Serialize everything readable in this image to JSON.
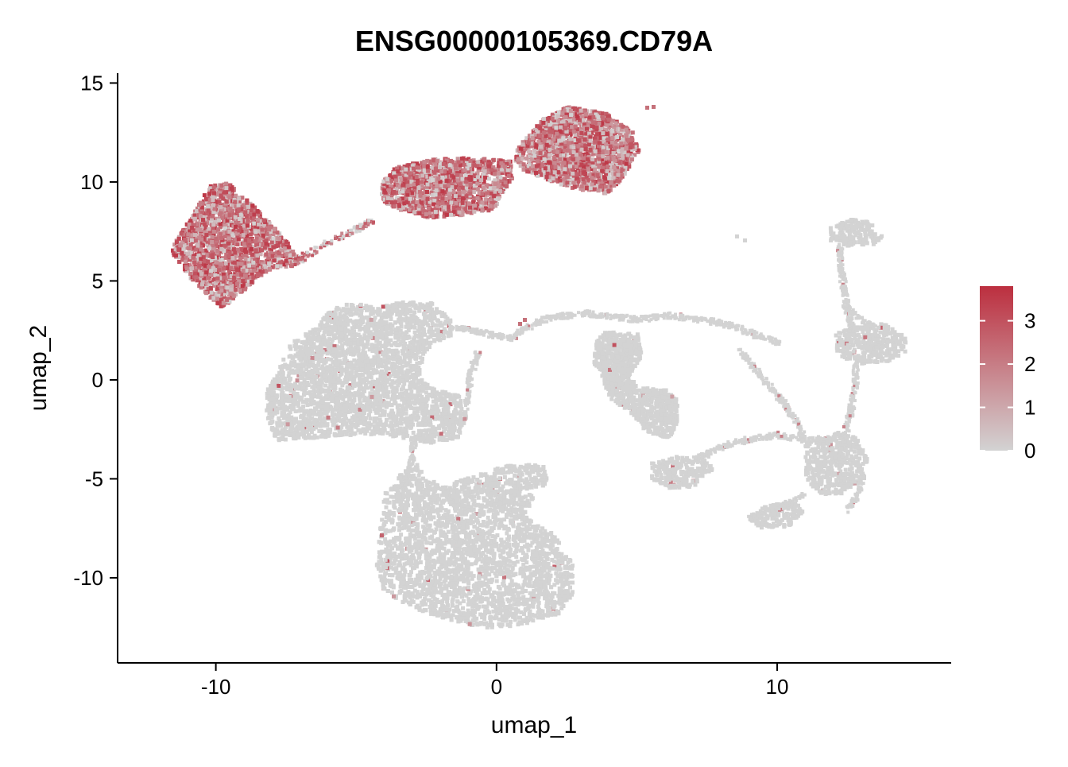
{
  "chart_data": {
    "type": "scatter",
    "title": "ENSG00000105369.CD79A",
    "xlabel": "umap_1",
    "ylabel": "umap_2",
    "xlim": [
      -13.5,
      16.2
    ],
    "ylim": [
      -14.3,
      15.5
    ],
    "x_ticks": [
      -10,
      0,
      10
    ],
    "x_tick_labels": [
      "-10",
      "0",
      "10"
    ],
    "y_ticks": [
      -10,
      -5,
      0,
      5,
      10,
      15
    ],
    "y_tick_labels": [
      "-10",
      "-5",
      "0",
      "5",
      "10",
      "15"
    ],
    "grid": false,
    "legend_position": "right",
    "color_scale": {
      "low": "#d3d3d3",
      "high": "#bc2f3f",
      "min": 0,
      "max": 3.8,
      "ticks": [
        0,
        1,
        2,
        3
      ],
      "tick_labels": [
        "0",
        "1",
        "2",
        "3"
      ]
    },
    "clusters": [
      {
        "region": "B-cell cluster (upper left)",
        "center": [
          -9.5,
          7.0
        ],
        "approx_expression": "high"
      },
      {
        "region": "B-cell cluster (upper middle)",
        "center": [
          -1.2,
          10.0
        ],
        "approx_expression": "high"
      },
      {
        "region": "B-cell cluster (upper right)",
        "center": [
          3.2,
          11.5
        ],
        "approx_expression": "high"
      },
      {
        "region": "large grey cluster (left)",
        "center": [
          -5.5,
          -0.5
        ],
        "approx_expression": "near zero"
      },
      {
        "region": "large grey cluster (bottom)",
        "center": [
          0.2,
          -9.5
        ],
        "approx_expression": "near zero"
      },
      {
        "region": "grey clusters (right)",
        "center": [
          9.0,
          0.0
        ],
        "approx_expression": "near zero"
      }
    ]
  }
}
